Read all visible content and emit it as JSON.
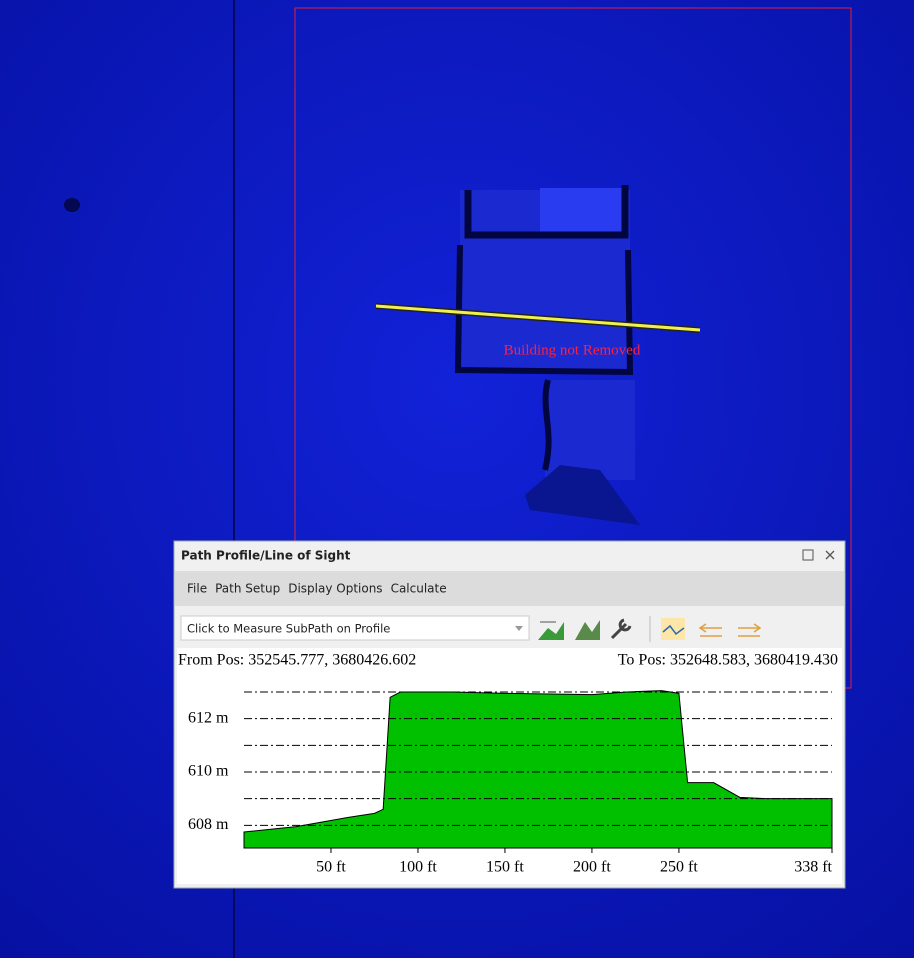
{
  "annotation": "Building not Removed",
  "window": {
    "title": "Path Profile/Line of Sight",
    "menu": [
      "File",
      "Path Setup",
      "Display Options",
      "Calculate"
    ],
    "dropdown": "Click to Measure SubPath on Profile",
    "from_pos": "From Pos: 352545.777, 3680426.602",
    "to_pos": "To Pos: 352648.583, 3680419.430"
  },
  "chart_data": {
    "type": "area",
    "x": [
      0,
      30,
      60,
      75,
      80,
      84,
      90,
      120,
      150,
      200,
      220,
      240,
      250,
      255,
      262,
      270,
      285,
      300,
      338
    ],
    "values": [
      607.75,
      607.95,
      608.3,
      608.45,
      608.6,
      612.8,
      613.0,
      613.0,
      612.95,
      612.9,
      613.0,
      613.05,
      612.95,
      609.6,
      609.6,
      609.6,
      609.05,
      609.0,
      609.0
    ],
    "color": "#00c000",
    "xlim": [
      0,
      338
    ],
    "ylim": [
      607.15,
      613.45
    ],
    "xticks": [
      {
        "value": 50,
        "label": "50 ft"
      },
      {
        "value": 100,
        "label": "100 ft"
      },
      {
        "value": 150,
        "label": "150 ft"
      },
      {
        "value": 200,
        "label": "200 ft"
      },
      {
        "value": 250,
        "label": "250 ft"
      },
      {
        "value": 338,
        "label": "338 ft"
      }
    ],
    "yticks": [
      {
        "value": 608,
        "label": "608 m"
      },
      {
        "value": 610,
        "label": "610 m"
      },
      {
        "value": 612,
        "label": "612 m"
      }
    ],
    "minor_grid": [
      609,
      611,
      613
    ]
  }
}
